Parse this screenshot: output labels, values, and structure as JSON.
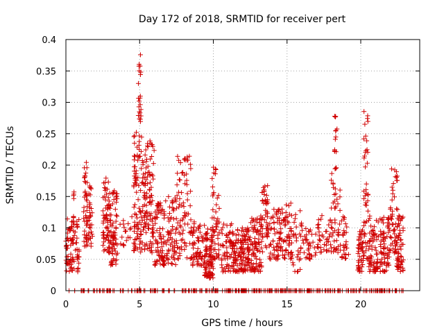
{
  "chart_data": {
    "type": "scatter",
    "title": "Day 172 of 2018, SRMTID for receiver pert",
    "xlabel": "GPS time / hours",
    "ylabel": "SRMTID / TECUs",
    "xlim": [
      0,
      24
    ],
    "ylim": [
      0,
      0.4
    ],
    "xticks": [
      "0",
      "5",
      "10",
      "15",
      "20"
    ],
    "xtick_values": [
      0,
      5,
      10,
      15,
      20
    ],
    "yticks": [
      "0",
      "0.05",
      "0.1",
      "0.15",
      "0.2",
      "0.25",
      "0.3",
      "0.35",
      "0.4"
    ],
    "ytick_values": [
      0,
      0.05,
      0.1,
      0.15,
      0.2,
      0.25,
      0.3,
      0.35,
      0.4
    ],
    "grid": true,
    "marker": "plus",
    "color": "#d00000",
    "series": [
      {
        "name": "SRMTID",
        "clusters": [
          {
            "x": [
              0.0,
              0.9
            ],
            "y": [
              0.03,
              0.12
            ],
            "n": 90
          },
          {
            "x": [
              0.45,
              0.55
            ],
            "y": [
              0.13,
              0.18
            ],
            "n": 4
          },
          {
            "x": [
              1.2,
              1.5
            ],
            "y": [
              0.07,
              0.21
            ],
            "n": 45
          },
          {
            "x": [
              1.5,
              1.8
            ],
            "y": [
              0.07,
              0.17
            ],
            "n": 30
          },
          {
            "x": [
              2.5,
              3.0
            ],
            "y": [
              0.06,
              0.18
            ],
            "n": 70
          },
          {
            "x": [
              3.0,
              3.5
            ],
            "y": [
              0.04,
              0.16
            ],
            "n": 70
          },
          {
            "x": [
              3.6,
              4.5
            ],
            "y": [
              0.07,
              0.12
            ],
            "n": 18
          },
          {
            "x": [
              4.6,
              5.2
            ],
            "y": [
              0.06,
              0.26
            ],
            "n": 90
          },
          {
            "x": [
              4.9,
              5.1
            ],
            "y": [
              0.26,
              0.38
            ],
            "n": 22
          },
          {
            "x": [
              5.2,
              6.0
            ],
            "y": [
              0.06,
              0.24
            ],
            "n": 110
          },
          {
            "x": [
              6.0,
              6.7
            ],
            "y": [
              0.04,
              0.14
            ],
            "n": 70
          },
          {
            "x": [
              6.6,
              7.5
            ],
            "y": [
              0.04,
              0.15
            ],
            "n": 70
          },
          {
            "x": [
              7.5,
              8.5
            ],
            "y": [
              0.05,
              0.22
            ],
            "n": 80
          },
          {
            "x": [
              8.5,
              9.4
            ],
            "y": [
              0.04,
              0.11
            ],
            "n": 60
          },
          {
            "x": [
              9.4,
              10.0
            ],
            "y": [
              0.02,
              0.1
            ],
            "n": 90
          },
          {
            "x": [
              9.9,
              10.4
            ],
            "y": [
              0.05,
              0.2
            ],
            "n": 50
          },
          {
            "x": [
              10.5,
              11.3
            ],
            "y": [
              0.03,
              0.11
            ],
            "n": 60
          },
          {
            "x": [
              11.3,
              12.5
            ],
            "y": [
              0.03,
              0.1
            ],
            "n": 140
          },
          {
            "x": [
              12.5,
              13.3
            ],
            "y": [
              0.03,
              0.12
            ],
            "n": 90
          },
          {
            "x": [
              13.3,
              13.7
            ],
            "y": [
              0.06,
              0.17
            ],
            "n": 45
          },
          {
            "x": [
              13.7,
              14.5
            ],
            "y": [
              0.05,
              0.13
            ],
            "n": 55
          },
          {
            "x": [
              14.5,
              15.3
            ],
            "y": [
              0.05,
              0.14
            ],
            "n": 60
          },
          {
            "x": [
              15.3,
              16.0
            ],
            "y": [
              0.03,
              0.13
            ],
            "n": 35
          },
          {
            "x": [
              16.0,
              17.0
            ],
            "y": [
              0.05,
              0.1
            ],
            "n": 35
          },
          {
            "x": [
              17.0,
              18.0
            ],
            "y": [
              0.06,
              0.12
            ],
            "n": 40
          },
          {
            "x": [
              18.0,
              18.6
            ],
            "y": [
              0.06,
              0.2
            ],
            "n": 45
          },
          {
            "x": [
              18.2,
              18.4
            ],
            "y": [
              0.22,
              0.29
            ],
            "n": 12
          },
          {
            "x": [
              18.6,
              19.2
            ],
            "y": [
              0.05,
              0.12
            ],
            "n": 30
          },
          {
            "x": [
              19.8,
              20.2
            ],
            "y": [
              0.03,
              0.1
            ],
            "n": 45
          },
          {
            "x": [
              20.2,
              20.5
            ],
            "y": [
              0.05,
              0.29
            ],
            "n": 45
          },
          {
            "x": [
              20.5,
              21.2
            ],
            "y": [
              0.03,
              0.12
            ],
            "n": 70
          },
          {
            "x": [
              21.3,
              22.0
            ],
            "y": [
              0.03,
              0.12
            ],
            "n": 70
          },
          {
            "x": [
              22.0,
              22.5
            ],
            "y": [
              0.06,
              0.2
            ],
            "n": 50
          },
          {
            "x": [
              22.4,
              22.9
            ],
            "y": [
              0.03,
              0.12
            ],
            "n": 60
          }
        ],
        "zero_row": {
          "x": [
            0.1,
            22.9
          ],
          "y": 0,
          "n": 300
        }
      }
    ]
  }
}
